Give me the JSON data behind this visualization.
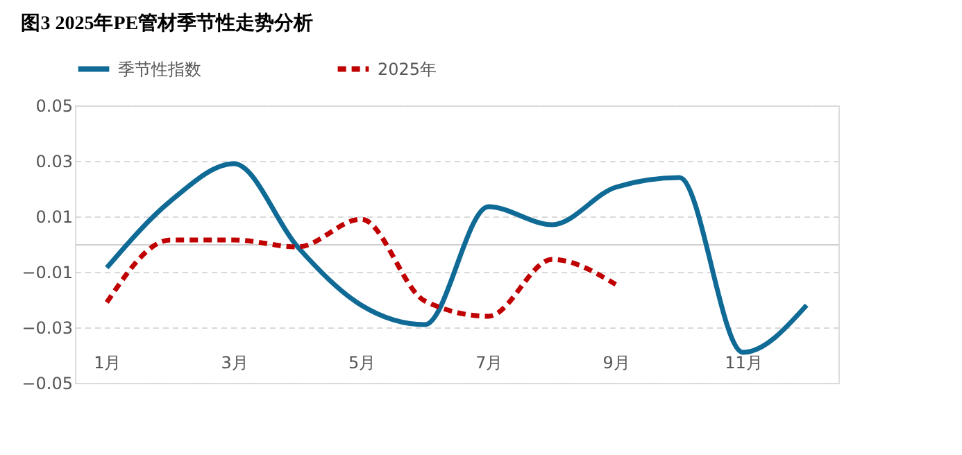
{
  "chart_data": {
    "type": "line",
    "title": "图3 2025年PE管材季节性走势分析",
    "categories": [
      "1月",
      null,
      "3月",
      null,
      "5月",
      null,
      "7月",
      null,
      "9月",
      null,
      "11月",
      null
    ],
    "series": [
      {
        "name": "季节性指数",
        "color": "#106a96",
        "line_style": "solid",
        "values": [
          -0.0085,
          0.0155,
          0.029,
          -0.001,
          -0.022,
          -0.029,
          0.0135,
          0.007,
          0.0205,
          0.024,
          -0.039,
          -0.022
        ]
      },
      {
        "name": "2025年",
        "color": "#c00000",
        "line_style": "dashed",
        "values": [
          -0.021,
          0.0015,
          0.0015,
          -0.001,
          0.009,
          -0.0205,
          -0.026,
          -0.0055,
          -0.0145,
          null,
          null,
          null
        ]
      }
    ],
    "ylim": [
      -0.05,
      0.05
    ],
    "yticks": [
      -0.05,
      -0.03,
      -0.01,
      0.01,
      0.03,
      0.05
    ],
    "grid": "y",
    "legend": "top",
    "marker": "none"
  }
}
